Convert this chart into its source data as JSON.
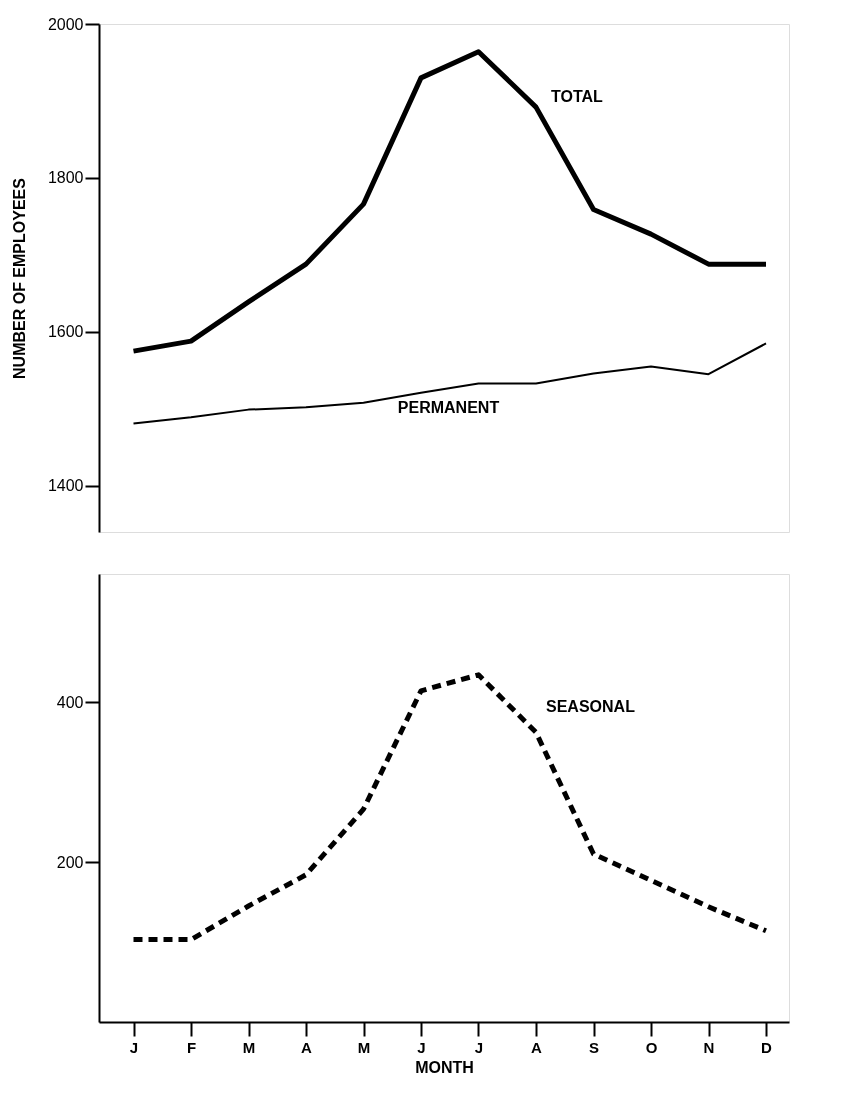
{
  "chart_data": [
    {
      "type": "line",
      "ylabel": "NUMBER OF EMPLOYEES",
      "categories": [
        null,
        null,
        null,
        null,
        null,
        null,
        null,
        null,
        null,
        null,
        null,
        null
      ],
      "ylim": [
        1340,
        2000
      ],
      "yticks": [
        1400,
        1600,
        1800,
        2000
      ],
      "tick_labels": "y",
      "grid": false,
      "marker": "none",
      "series": [
        {
          "name": "TOTAL",
          "color": "#000000",
          "line_style": "solid",
          "values": [
            1575,
            1588,
            1639,
            1688,
            1766,
            1930,
            1964,
            1892,
            1759,
            1727,
            1688,
            1688
          ]
        },
        {
          "name": "PERMANENT",
          "color": "#000000",
          "line_style": "solid",
          "values": [
            1481,
            1489,
            1499,
            1502,
            1508,
            1521,
            1533,
            1533,
            1546,
            1555,
            1545,
            1585
          ]
        }
      ]
    },
    {
      "type": "line",
      "xlabel": "MONTH",
      "categories": [
        "J",
        "F",
        "M",
        "A",
        "M",
        "J",
        "J",
        "A",
        "S",
        "O",
        "N",
        "D"
      ],
      "ylim": [
        0,
        560
      ],
      "yticks": [
        200,
        400
      ],
      "grid": false,
      "marker": "none",
      "series": [
        {
          "name": "SEASONAL",
          "color": "#000000",
          "line_style": "dashed",
          "values": [
            103,
            103,
            145,
            184,
            266,
            414,
            434,
            362,
            210,
            177,
            144,
            114
          ]
        }
      ]
    }
  ]
}
